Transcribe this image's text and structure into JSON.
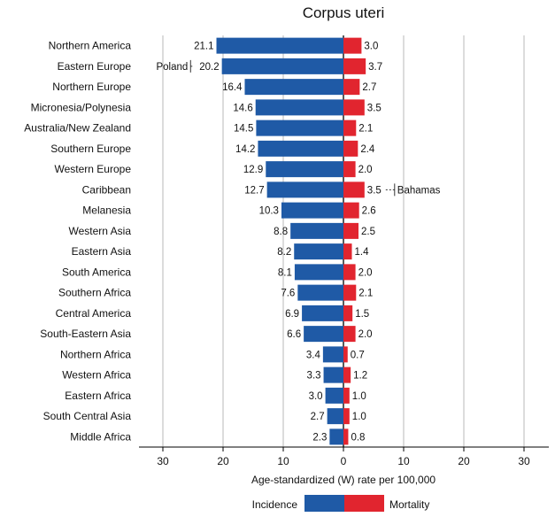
{
  "chart_data": {
    "type": "bar",
    "orientation": "horizontal-diverging",
    "title": "Corpus uteri",
    "xlabel": "Age-standardized (W) rate per 100,000",
    "xlim": [
      -33,
      33
    ],
    "xticks": [
      -30,
      -20,
      -10,
      0,
      10,
      20,
      30
    ],
    "xtick_labels": [
      "30",
      "20",
      "10",
      "0",
      "10",
      "20",
      "30"
    ],
    "grid": true,
    "categories": [
      "Northern America",
      "Eastern Europe",
      "Northern Europe",
      "Micronesia/Polynesia",
      "Australia/New Zealand",
      "Southern Europe",
      "Western Europe",
      "Caribbean",
      "Melanesia",
      "Western Asia",
      "Eastern Asia",
      "South America",
      "Southern Africa",
      "Central America",
      "South-Eastern Asia",
      "Northern Africa",
      "Western Africa",
      "Eastern Africa",
      "South Central Asia",
      "Middle Africa"
    ],
    "series": [
      {
        "name": "Incidence",
        "color": "#1f5aa6",
        "side": "left",
        "values": [
          21.1,
          20.2,
          16.4,
          14.6,
          14.5,
          14.2,
          12.9,
          12.7,
          10.3,
          8.8,
          8.2,
          8.1,
          7.6,
          6.9,
          6.6,
          3.4,
          3.3,
          3.0,
          2.7,
          2.3
        ],
        "labels": [
          "21.1",
          "20.2",
          "16.4",
          "14.6",
          "14.5",
          "14.2",
          "12.9",
          "12.7",
          "10.3",
          "8.8",
          "8.2",
          "8.1",
          "7.6",
          "6.9",
          "6.6",
          "3.4",
          "3.3",
          "3.0",
          "2.7",
          "2.3"
        ]
      },
      {
        "name": "Mortality",
        "color": "#e1252f",
        "side": "right",
        "values": [
          3.0,
          3.7,
          2.7,
          3.5,
          2.1,
          2.4,
          2.0,
          3.5,
          2.6,
          2.5,
          1.4,
          2.0,
          2.1,
          1.5,
          2.0,
          0.7,
          1.2,
          1.0,
          1.0,
          0.8
        ],
        "labels": [
          "3.0",
          "3.7",
          "2.7",
          "3.5",
          "2.1",
          "2.4",
          "2.0",
          "3.5",
          "2.6",
          "2.5",
          "1.4",
          "2.0",
          "2.1",
          "1.5",
          "2.0",
          "0.7",
          "1.2",
          "1.0",
          "1.0",
          "0.8"
        ]
      }
    ],
    "annotations": [
      {
        "category": "Eastern Europe",
        "series": "Incidence",
        "text": "Poland",
        "value": 25.4
      },
      {
        "category": "Caribbean",
        "series": "Mortality",
        "text": "Bahamas",
        "value": 8.5
      }
    ],
    "legend": {
      "position": "bottom-center",
      "entries": [
        "Incidence",
        "Mortality"
      ]
    }
  }
}
